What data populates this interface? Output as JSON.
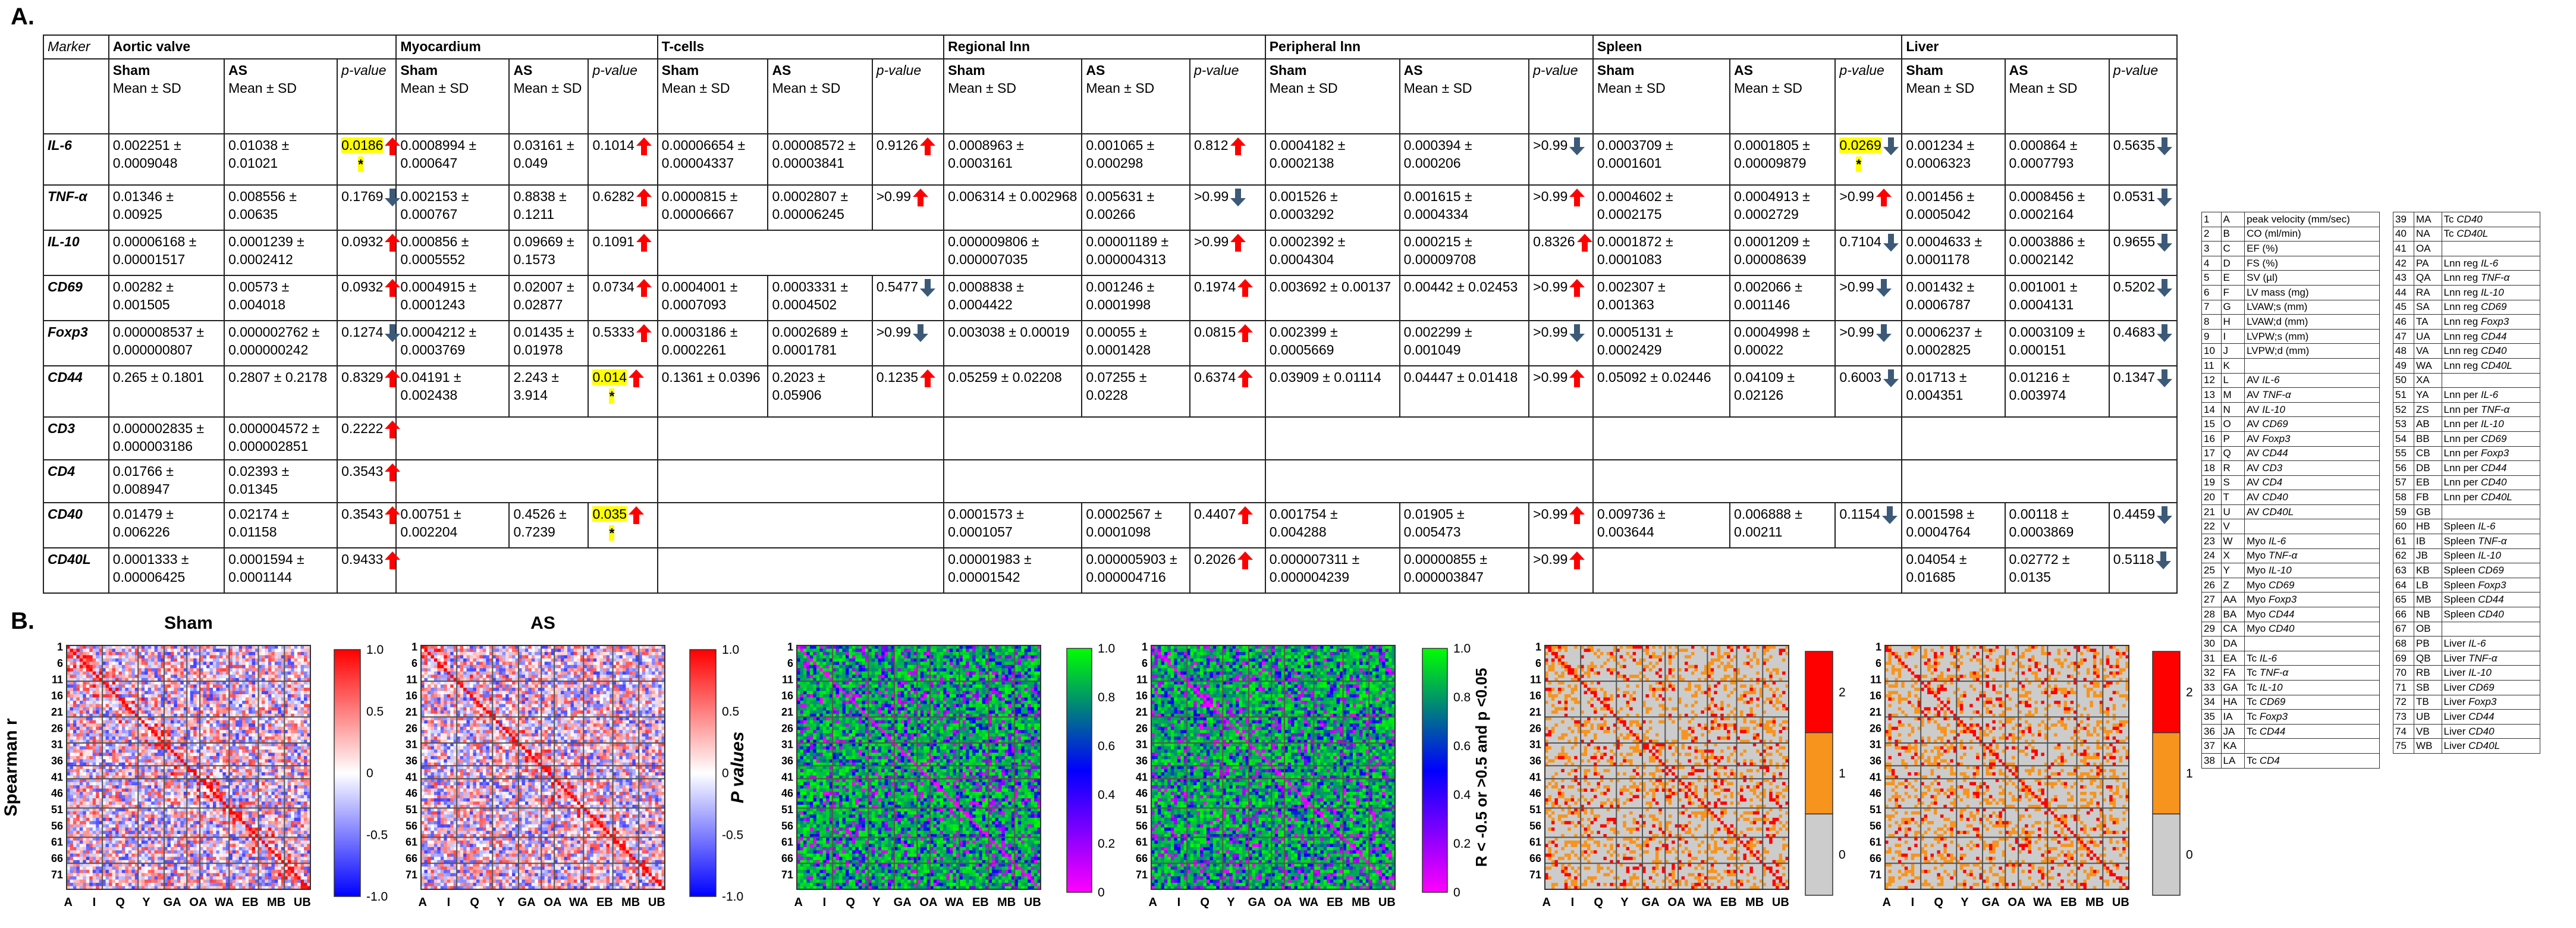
{
  "panels": {
    "a": "A.",
    "b": "B."
  },
  "table": {
    "marker_header": "Marker",
    "groups": [
      "Aortic valve",
      "Myocardium",
      "T-cells",
      "Regional lnn",
      "Peripheral lnn",
      "Spleen",
      "Liver"
    ],
    "sub_headers": {
      "sham": "Sham",
      "as": "AS",
      "mean_sd": "Mean ± SD",
      "p": "p-value"
    },
    "rows": [
      {
        "marker": "IL-6",
        "cells": [
          [
            "0.002251 ± 0.0009048",
            "0.01038 ± 0.01021",
            "0.0186",
            "up",
            "*"
          ],
          [
            "0.0008994 ± 0.000647",
            "0.03161 ± 0.049",
            "0.1014",
            "up",
            ""
          ],
          [
            "0.00006654 ± 0.00004337",
            "0.00008572 ± 0.00003841",
            "0.9126",
            "up",
            ""
          ],
          [
            "0.0008963 ± 0.0003161",
            "0.001065 ± 0.000298",
            "0.812",
            "up",
            ""
          ],
          [
            "0.0004182 ± 0.0002138",
            "0.000394 ± 0.000206",
            "&gt;0.99",
            "down",
            ""
          ],
          [
            "0.0003709 ± 0.0001601",
            "0.0001805 ± 0.00009879",
            "0.0269",
            "down",
            "*"
          ],
          [
            "0.001234 ± 0.0006323",
            "0.000864 ± 0.0007793",
            "0.5635",
            "down",
            ""
          ]
        ]
      },
      {
        "marker": "TNF-α",
        "cells": [
          [
            "0.01346 ± 0.00925",
            "0.008556 ± 0.00635",
            "0.1769",
            "down",
            ""
          ],
          [
            "0.002153 ± 0.000767",
            "0.8838 ± 0.1211",
            "0.6282",
            "up",
            ""
          ],
          [
            "0.0000815 ± 0.00006667",
            "0.0002807 ± 0.00006245",
            "&gt;0.99",
            "up",
            ""
          ],
          [
            "0.006314 ± 0.002968",
            "0.005631 ± 0.00266",
            "&gt;0.99",
            "down",
            ""
          ],
          [
            "0.001526 ± 0.0003292",
            "0.001615 ± 0.0004334",
            "&gt;0.99",
            "up",
            ""
          ],
          [
            "0.0004602 ± 0.0002175",
            "0.0004913 ± 0.0002729",
            "&gt;0.99",
            "up",
            ""
          ],
          [
            "0.001456 ± 0.0005042",
            "0.0008456 ± 0.0002164",
            "0.0531",
            "down",
            ""
          ]
        ]
      },
      {
        "marker": "IL-10",
        "cells": [
          [
            "0.00006168 ± 0.00001517",
            "0.0001239 ± 0.0002412",
            "0.0932",
            "up",
            ""
          ],
          [
            "0.000856 ± 0.0005552",
            "0.09669 ± 0.1573",
            "0.1091",
            "up",
            ""
          ],
          null,
          [
            "0.000009806 ± 0.000007035",
            "0.00001189 ± 0.000004313",
            "&gt;0.99",
            "up",
            ""
          ],
          [
            "0.0002392 ± 0.0004304",
            "0.000215 ± 0.00009708",
            "0.8326",
            "up",
            ""
          ],
          [
            "0.0001872 ± 0.0001083",
            "0.0001209 ± 0.00008639",
            "0.7104",
            "down",
            ""
          ],
          [
            "0.0004633 ± 0.0001178",
            "0.0003886 ± 0.0002142",
            "0.9655",
            "down",
            ""
          ]
        ]
      },
      {
        "marker": "CD69",
        "cells": [
          [
            "0.00282 ± 0.001505",
            "0.00573 ± 0.004018",
            "0.0932",
            "up",
            ""
          ],
          [
            "0.0004915 ± 0.0001243",
            "0.02007 ± 0.02877",
            "0.0734",
            "up",
            ""
          ],
          [
            "0.0004001 ± 0.0007093",
            "0.0003331 ± 0.0004502",
            "0.5477",
            "down",
            ""
          ],
          [
            "0.0008838 ± 0.0004422",
            "0.001246 ± 0.0001998",
            "0.1974",
            "up",
            ""
          ],
          [
            "0.003692 ± 0.00137",
            "0.00442 ± 0.02453",
            "&gt;0.99",
            "up",
            ""
          ],
          [
            "0.002307 ± 0.001363",
            "0.002066 ± 0.001146",
            "&gt;0.99",
            "down",
            ""
          ],
          [
            "0.001432 ± 0.0006787",
            "0.001001 ± 0.0004131",
            "0.5202",
            "down",
            ""
          ]
        ]
      },
      {
        "marker": "Foxp3",
        "cells": [
          [
            "0.000008537 ± 0.000000807",
            "0.000002762 ± 0.000000242",
            "0.1274",
            "down",
            ""
          ],
          [
            "0.0004212 ± 0.0003769",
            "0.01435 ± 0.01978",
            "0.5333",
            "up",
            ""
          ],
          [
            "0.0003186 ± 0.0002261",
            "0.0002689 ± 0.0001781",
            "&gt;0.99",
            "down",
            ""
          ],
          [
            "0.003038 ± 0.00019",
            "0.00055 ± 0.0001428",
            "0.0815",
            "up",
            ""
          ],
          [
            "0.002399 ± 0.0005669",
            "0.002299 ± 0.001049",
            "&gt;0.99",
            "down",
            ""
          ],
          [
            "0.0005131 ± 0.0002429",
            "0.0004998 ± 0.00022",
            "&gt;0.99",
            "down",
            ""
          ],
          [
            "0.0006237 ± 0.0002825",
            "0.0003109 ± 0.000151",
            "0.4683",
            "down",
            ""
          ]
        ]
      },
      {
        "marker": "CD44",
        "cells": [
          [
            "0.265 ± 0.1801",
            "0.2807 ± 0.2178",
            "0.8329",
            "up",
            ""
          ],
          [
            "0.04191 ± 0.002438",
            "2.243 ± 3.914",
            "0.014",
            "up",
            "*"
          ],
          [
            "0.1361 ± 0.0396",
            "0.2023 ± 0.05906",
            "0.1235",
            "up",
            ""
          ],
          [
            "0.05259 ± 0.02208",
            "0.07255 ± 0.0228",
            "0.6374",
            "up",
            ""
          ],
          [
            "0.03909 ± 0.01114",
            "0.04447 ± 0.01418",
            "&gt;0.99",
            "up",
            ""
          ],
          [
            "0.05092 ± 0.02446",
            "0.04109 ± 0.02126",
            "0.6003",
            "down",
            ""
          ],
          [
            "0.01713 ± 0.004351",
            "0.01216 ± 0.003974",
            "0.1347",
            "down",
            ""
          ]
        ]
      },
      {
        "marker": "CD3",
        "cells": [
          [
            "0.000002835 ± 0.000003186",
            "0.000004572 ± 0.000002851",
            "0.2222",
            "up",
            ""
          ],
          null,
          null,
          null,
          null,
          null,
          null
        ]
      },
      {
        "marker": "CD4",
        "cells": [
          [
            "0.01766 ± 0.008947",
            "0.02393 ± 0.01345",
            "0.3543",
            "up",
            ""
          ],
          null,
          null,
          null,
          null,
          null,
          null
        ]
      },
      {
        "marker": "CD40",
        "cells": [
          [
            "0.01479 ± 0.006226",
            "0.02174 ± 0.01158",
            "0.3543",
            "up",
            ""
          ],
          [
            "0.00751 ± 0.002204",
            "0.4526 ± 0.7239",
            "0.035",
            "up",
            "*"
          ],
          null,
          [
            "0.0001573 ± 0.0001057",
            "0.0002567 ± 0.0001098",
            "0.4407",
            "up",
            ""
          ],
          [
            "0.001754 ± 0.004288",
            "0.01905 ± 0.005473",
            "&gt;0.99",
            "up",
            ""
          ],
          [
            "0.009736 ± 0.003644",
            "0.006888 ± 0.00211",
            "0.1154",
            "down",
            ""
          ],
          [
            "0.001598 ± 0.0004764",
            "0.00118 ± 0.0003869",
            "0.4459",
            "down",
            ""
          ]
        ]
      },
      {
        "marker": "CD40L",
        "cells": [
          [
            "0.0001333 ± 0.00006425",
            "0.0001594 ± 0.0001144",
            "0.9433",
            "up",
            ""
          ],
          null,
          null,
          [
            "0.00001983 ± 0.00001542",
            "0.000005903 ± 0.000004716",
            "0.2026",
            "up",
            ""
          ],
          [
            "0.000007311 ± 0.000004239",
            "0.00000855 ± 0.000003847",
            "&gt;0.99",
            "up",
            ""
          ],
          null,
          [
            "0.04054 ± 0.01685",
            "0.02772 ± 0.0135",
            "0.5118",
            "down",
            ""
          ]
        ]
      }
    ]
  },
  "legend": {
    "col1": [
      [
        "1",
        "A",
        "peak velocity (mm/sec)"
      ],
      [
        "2",
        "B",
        "CO (ml/min)"
      ],
      [
        "3",
        "C",
        "EF (%)"
      ],
      [
        "4",
        "D",
        "FS (%)"
      ],
      [
        "5",
        "E",
        "SV (µl)"
      ],
      [
        "6",
        "F",
        "LV mass (mg)"
      ],
      [
        "7",
        "G",
        "LVAW;s (mm)"
      ],
      [
        "8",
        "H",
        "LVAW;d (mm)"
      ],
      [
        "9",
        "I",
        "LVPW;s (mm)"
      ],
      [
        "10",
        "J",
        "LVPW;d (mm)"
      ],
      [
        "11",
        "K",
        ""
      ],
      [
        "12",
        "L",
        "AV |IL-6"
      ],
      [
        "13",
        "M",
        "AV |TNF-α"
      ],
      [
        "14",
        "N",
        "AV |IL-10"
      ],
      [
        "15",
        "O",
        "AV |CD69"
      ],
      [
        "16",
        "P",
        "AV |Foxp3"
      ],
      [
        "17",
        "Q",
        "AV |CD44"
      ],
      [
        "18",
        "R",
        "AV |CD3"
      ],
      [
        "19",
        "S",
        "AV |CD4"
      ],
      [
        "20",
        "T",
        "AV |CD40"
      ],
      [
        "21",
        "U",
        "AV |CD40L"
      ],
      [
        "22",
        "V",
        ""
      ],
      [
        "23",
        "W",
        "Myo |IL-6"
      ],
      [
        "24",
        "X",
        "Myo |TNF-α"
      ],
      [
        "25",
        "Y",
        "Myo |IL-10"
      ],
      [
        "26",
        "Z",
        "Myo |CD69"
      ],
      [
        "27",
        "AA",
        "Myo |Foxp3"
      ],
      [
        "28",
        "BA",
        "Myo |CD44"
      ],
      [
        "29",
        "CA",
        "Myo |CD40"
      ],
      [
        "30",
        "DA",
        ""
      ],
      [
        "31",
        "EA",
        "Tc |IL-6"
      ],
      [
        "32",
        "FA",
        "Tc |TNF-α"
      ],
      [
        "33",
        "GA",
        "Tc |IL-10"
      ],
      [
        "34",
        "HA",
        "Tc |CD69"
      ],
      [
        "35",
        "IA",
        "Tc |Foxp3"
      ],
      [
        "36",
        "JA",
        "Tc |CD44"
      ],
      [
        "37",
        "KA",
        ""
      ],
      [
        "38",
        "LA",
        "Tc |CD4"
      ]
    ],
    "col2": [
      [
        "39",
        "MA",
        "Tc |CD40"
      ],
      [
        "40",
        "NA",
        "Tc |CD40L"
      ],
      [
        "41",
        "OA",
        ""
      ],
      [
        "42",
        "PA",
        "Lnn reg |IL-6"
      ],
      [
        "43",
        "QA",
        "Lnn reg |TNF-α"
      ],
      [
        "44",
        "RA",
        "Lnn reg |IL-10"
      ],
      [
        "45",
        "SA",
        "Lnn reg |CD69"
      ],
      [
        "46",
        "TA",
        "Lnn reg |Foxp3"
      ],
      [
        "47",
        "UA",
        "Lnn reg |CD44"
      ],
      [
        "48",
        "VA",
        "Lnn reg |CD40"
      ],
      [
        "49",
        "WA",
        "Lnn reg |CD40L"
      ],
      [
        "50",
        "XA",
        ""
      ],
      [
        "51",
        "YA",
        "Lnn per |IL-6"
      ],
      [
        "52",
        "ZS",
        "Lnn per |TNF-α"
      ],
      [
        "53",
        "AB",
        "Lnn per |IL-10"
      ],
      [
        "54",
        "BB",
        "Lnn per |CD69"
      ],
      [
        "55",
        "CB",
        "Lnn per |Foxp3"
      ],
      [
        "56",
        "DB",
        "Lnn per |CD44"
      ],
      [
        "57",
        "EB",
        "Lnn per |CD40"
      ],
      [
        "58",
        "FB",
        "Lnn per |CD40L"
      ],
      [
        "59",
        "GB",
        ""
      ],
      [
        "60",
        "HB",
        "Spleen |IL-6"
      ],
      [
        "61",
        "IB",
        "Spleen |TNF-α"
      ],
      [
        "62",
        "JB",
        "Spleen |IL-10"
      ],
      [
        "63",
        "KB",
        "Spleen |CD69"
      ],
      [
        "64",
        "LB",
        "Spleen |Foxp3"
      ],
      [
        "65",
        "MB",
        "Spleen |CD44"
      ],
      [
        "66",
        "NB",
        "Spleen |CD40"
      ],
      [
        "67",
        "OB",
        ""
      ],
      [
        "68",
        "PB",
        "Liver |IL-6"
      ],
      [
        "69",
        "QB",
        "Liver |TNF-α"
      ],
      [
        "70",
        "RB",
        "Liver |IL-10"
      ],
      [
        "71",
        "SB",
        "Liver |CD69"
      ],
      [
        "72",
        "TB",
        "Liver |Foxp3"
      ],
      [
        "73",
        "UB",
        "Liver |CD44"
      ],
      [
        "74",
        "VB",
        "Liver |CD40"
      ],
      [
        "75",
        "WB",
        "Liver |CD40L"
      ]
    ]
  },
  "chart_data": [
    {
      "type": "heatmap",
      "title": "Sham",
      "ylabel": "Spearman r",
      "rows": 75,
      "cols": 75,
      "row_ticks": [
        "1",
        "6",
        "11",
        "16",
        "21",
        "26",
        "31",
        "36",
        "41",
        "46",
        "51",
        "56",
        "61",
        "66",
        "71"
      ],
      "col_ticks": [
        "A",
        "I",
        "Q",
        "Y",
        "GA",
        "OA",
        "WA",
        "EB",
        "MB",
        "UB"
      ],
      "colorbar": {
        "min": -1.0,
        "max": 1.0,
        "ticks": [
          "1.0",
          "0.5",
          "0",
          "-0.5",
          "-1.0"
        ],
        "colors": [
          "#0000ff",
          "#ffffff",
          "#ff0000"
        ]
      }
    },
    {
      "type": "heatmap",
      "title": "AS",
      "rows": 75,
      "cols": 75,
      "row_ticks": [
        "1",
        "6",
        "11",
        "16",
        "21",
        "26",
        "31",
        "36",
        "41",
        "46",
        "51",
        "56",
        "61",
        "66",
        "71"
      ],
      "col_ticks": [
        "A",
        "I",
        "Q",
        "Y",
        "GA",
        "OA",
        "WA",
        "EB",
        "MB",
        "UB"
      ],
      "colorbar": {
        "min": -1.0,
        "max": 1.0,
        "ticks": [
          "1.0",
          "0.5",
          "0",
          "-0.5",
          "-1.0"
        ],
        "colors": [
          "#0000ff",
          "#ffffff",
          "#ff0000"
        ]
      }
    },
    {
      "type": "heatmap",
      "ylabel": "P values",
      "rows": 75,
      "cols": 75,
      "row_ticks": [
        "1",
        "6",
        "11",
        "16",
        "21",
        "26",
        "31",
        "36",
        "41",
        "46",
        "51",
        "56",
        "61",
        "66",
        "71"
      ],
      "col_ticks": [
        "A",
        "I",
        "Q",
        "Y",
        "GA",
        "OA",
        "WA",
        "EB",
        "MB",
        "UB"
      ],
      "colorbar": {
        "min": 0,
        "max": 1.0,
        "ticks": [
          "1.0",
          "0.8",
          "0.6",
          "0.4",
          "0.2",
          "0"
        ],
        "colors": [
          "#ff00ff",
          "#0000ff",
          "#00ff00"
        ]
      }
    },
    {
      "type": "heatmap",
      "rows": 75,
      "cols": 75,
      "row_ticks": [
        "1",
        "6",
        "11",
        "16",
        "21",
        "26",
        "31",
        "36",
        "41",
        "46",
        "51",
        "56",
        "61",
        "66",
        "71"
      ],
      "col_ticks": [
        "A",
        "I",
        "Q",
        "Y",
        "GA",
        "OA",
        "WA",
        "EB",
        "MB",
        "UB"
      ],
      "colorbar": {
        "min": 0,
        "max": 1.0,
        "ticks": [
          "1.0",
          "0.8",
          "0.6",
          "0.4",
          "0.2",
          "0"
        ],
        "colors": [
          "#ff00ff",
          "#0000ff",
          "#00ff00"
        ]
      }
    },
    {
      "type": "heatmap",
      "ylabel": "R < -0.5 or >0.5 and p <0.05",
      "rows": 75,
      "cols": 75,
      "row_ticks": [
        "1",
        "6",
        "11",
        "16",
        "21",
        "26",
        "31",
        "36",
        "41",
        "46",
        "51",
        "56",
        "61",
        "66",
        "71"
      ],
      "col_ticks": [
        "A",
        "I",
        "Q",
        "Y",
        "GA",
        "OA",
        "WA",
        "EB",
        "MB",
        "UB"
      ],
      "colorbar": {
        "min": 0,
        "max": 2,
        "ticks": [
          "2",
          "1",
          "0"
        ],
        "colors": [
          "#cccccc",
          "#f7941d",
          "#ff0000"
        ]
      }
    },
    {
      "type": "heatmap",
      "rows": 75,
      "cols": 75,
      "row_ticks": [
        "1",
        "6",
        "11",
        "16",
        "21",
        "26",
        "31",
        "36",
        "41",
        "46",
        "51",
        "56",
        "61",
        "66",
        "71"
      ],
      "col_ticks": [
        "A",
        "I",
        "Q",
        "Y",
        "GA",
        "OA",
        "WA",
        "EB",
        "MB",
        "UB"
      ],
      "colorbar": {
        "min": 0,
        "max": 2,
        "ticks": [
          "2",
          "1",
          "0"
        ],
        "colors": [
          "#cccccc",
          "#f7941d",
          "#ff0000"
        ]
      }
    }
  ],
  "colors": {
    "arrow_up": "#ff0000",
    "arrow_down": "#3c5a78",
    "highlight": "#ffff00"
  }
}
